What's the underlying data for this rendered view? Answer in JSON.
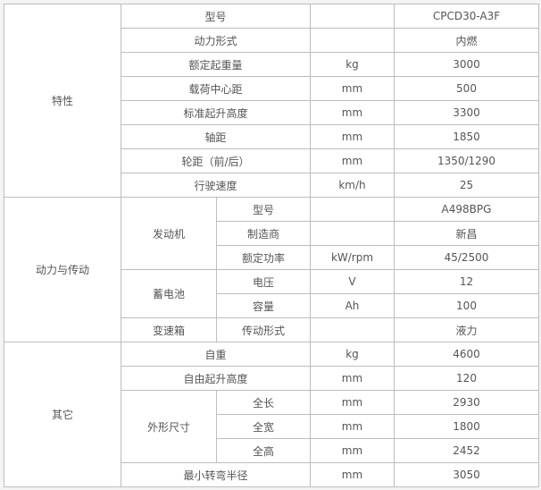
{
  "spec_table": {
    "rows": [
      [
        {
          "t": "特性",
          "rs": 8
        },
        {
          "t": "型号",
          "cs": 2
        },
        {
          "t": ""
        },
        {
          "t": "CPCD30-A3F"
        }
      ],
      [
        {
          "t": "动力形式",
          "cs": 2
        },
        {
          "t": ""
        },
        {
          "t": "内燃"
        }
      ],
      [
        {
          "t": "额定起重量",
          "cs": 2
        },
        {
          "t": "kg"
        },
        {
          "t": "3000"
        }
      ],
      [
        {
          "t": "载荷中心距",
          "cs": 2
        },
        {
          "t": "mm"
        },
        {
          "t": "500"
        }
      ],
      [
        {
          "t": "标准起升高度",
          "cs": 2
        },
        {
          "t": "mm"
        },
        {
          "t": "3300"
        }
      ],
      [
        {
          "t": "轴距",
          "cs": 2
        },
        {
          "t": "mm"
        },
        {
          "t": "1850"
        }
      ],
      [
        {
          "t": "轮距（前/后）",
          "cs": 2
        },
        {
          "t": "mm"
        },
        {
          "t": "1350/1290"
        }
      ],
      [
        {
          "t": "行驶速度",
          "cs": 2
        },
        {
          "t": "km/h"
        },
        {
          "t": "25"
        }
      ],
      [
        {
          "t": "动力与传动",
          "rs": 6
        },
        {
          "t": "发动机",
          "rs": 3
        },
        {
          "t": "型号"
        },
        {
          "t": ""
        },
        {
          "t": "A498BPG"
        }
      ],
      [
        {
          "t": "制造商"
        },
        {
          "t": ""
        },
        {
          "t": "新昌"
        }
      ],
      [
        {
          "t": "额定功率"
        },
        {
          "t": "kW/rpm"
        },
        {
          "t": "45/2500"
        }
      ],
      [
        {
          "t": "蓄电池",
          "rs": 2
        },
        {
          "t": "电压"
        },
        {
          "t": "V"
        },
        {
          "t": "12"
        }
      ],
      [
        {
          "t": "容量"
        },
        {
          "t": "Ah"
        },
        {
          "t": "100"
        }
      ],
      [
        {
          "t": "变速箱"
        },
        {
          "t": "传动形式"
        },
        {
          "t": ""
        },
        {
          "t": "液力"
        }
      ],
      [
        {
          "t": "其它",
          "rs": 6
        },
        {
          "t": "自重",
          "cs": 2
        },
        {
          "t": "kg"
        },
        {
          "t": "4600"
        }
      ],
      [
        {
          "t": "自由起升高度",
          "cs": 2
        },
        {
          "t": "mm"
        },
        {
          "t": "120"
        }
      ],
      [
        {
          "t": "外形尺寸",
          "rs": 3
        },
        {
          "t": "全长"
        },
        {
          "t": "mm"
        },
        {
          "t": "2930"
        }
      ],
      [
        {
          "t": "全宽"
        },
        {
          "t": "mm"
        },
        {
          "t": "1800"
        }
      ],
      [
        {
          "t": "全高"
        },
        {
          "t": "mm"
        },
        {
          "t": "2452"
        }
      ],
      [
        {
          "t": "最小转弯半径",
          "cs": 2
        },
        {
          "t": "mm"
        },
        {
          "t": "3050"
        }
      ]
    ]
  }
}
